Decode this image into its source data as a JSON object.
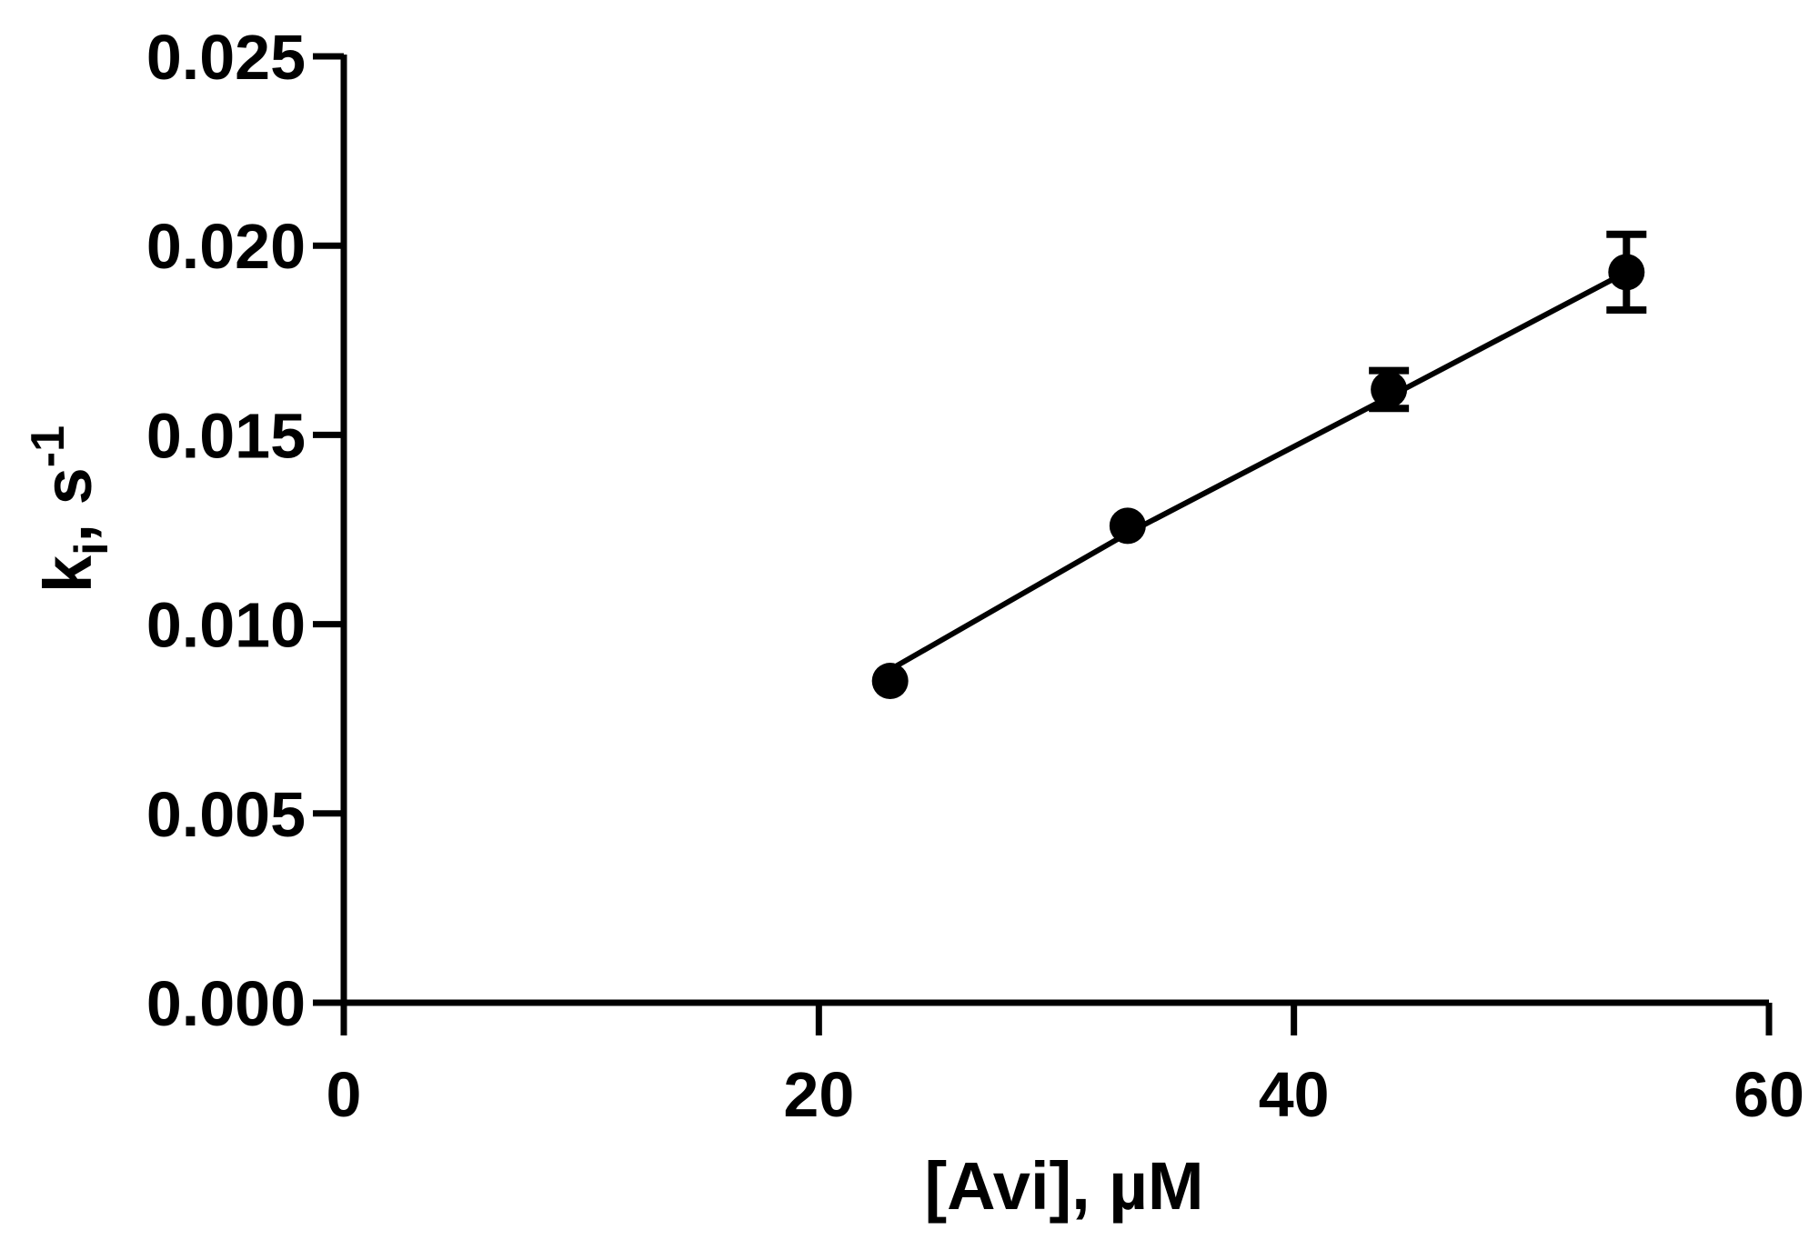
{
  "chart_data": {
    "type": "scatter",
    "xlabel": "[Avi], µM",
    "ylabel_main": "k",
    "ylabel_sub": "i",
    "ylabel_rest": ", s",
    "ylabel_sup": "-1",
    "xlim": [
      0,
      60
    ],
    "ylim": [
      0,
      0.025
    ],
    "x_ticks": [
      "0",
      "20",
      "40",
      "60"
    ],
    "x_tick_values": [
      0,
      20,
      40,
      60
    ],
    "y_ticks": [
      "0.000",
      "0.005",
      "0.010",
      "0.015",
      "0.020",
      "0.025"
    ],
    "y_tick_values": [
      0,
      0.005,
      0.01,
      0.015,
      0.02,
      0.025
    ],
    "grid": false,
    "series": [
      {
        "x": [
          23,
          33,
          44,
          54
        ],
        "y": [
          0.0085,
          0.0126,
          0.0162,
          0.0193
        ],
        "error": [
          0.0002,
          0.0002,
          0.0005,
          0.001
        ]
      }
    ],
    "fit_line": {
      "x": [
        23,
        33,
        44,
        54
      ],
      "y": [
        0.0088,
        0.0124,
        0.016,
        0.0193
      ]
    }
  }
}
